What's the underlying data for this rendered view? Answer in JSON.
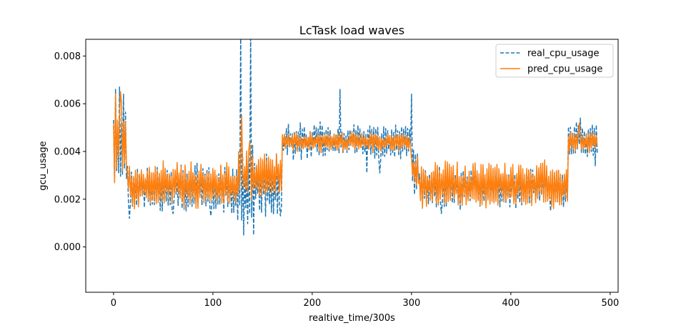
{
  "chart_data": {
    "type": "line",
    "title": "LcTask load waves",
    "xlabel": "realtive_time/300s",
    "ylabel": "gcu_usage",
    "xlim": [
      -28,
      508
    ],
    "ylim": [
      -0.0019,
      0.0087
    ],
    "xticks": [
      0,
      100,
      200,
      300,
      400,
      500
    ],
    "xtick_labels": [
      "0",
      "100",
      "200",
      "300",
      "400",
      "500"
    ],
    "yticks": [
      0.0,
      0.002,
      0.004,
      0.006,
      0.008
    ],
    "ytick_labels": [
      "0.000",
      "0.002",
      "0.004",
      "0.006",
      "0.008"
    ],
    "grid": false,
    "legend_position": "top-right",
    "n_points": 488,
    "series": [
      {
        "name": "real_cpu_usage",
        "color": "#1f77b4",
        "style": "dashed",
        "segments": [
          {
            "x": [
              0,
              14
            ],
            "center": 0.0042,
            "amp": 0.0016,
            "spikes": [
              [
                2,
                0.0066
              ],
              [
                6,
                0.0067
              ],
              [
                10,
                0.0064
              ]
            ]
          },
          {
            "x": [
              14,
              125
            ],
            "center": 0.00245,
            "amp": 0.0009,
            "spikes": [
              [
                16,
                0.0012
              ],
              [
                60,
                0.0014
              ],
              [
                98,
                0.0013
              ]
            ]
          },
          {
            "x": [
              125,
              170
            ],
            "center": 0.0026,
            "amp": 0.0014,
            "spikes": [
              [
                128,
                0.0092
              ],
              [
                131,
                0.0005
              ],
              [
                134,
                0.003
              ],
              [
                138,
                0.0092
              ],
              [
                141,
                0.0005
              ],
              [
                168,
                0.0013
              ]
            ]
          },
          {
            "x": [
              170,
              300
            ],
            "center": 0.0044,
            "amp": 0.0007,
            "spikes": [
              [
                228,
                0.0066
              ],
              [
                255,
                0.0031
              ],
              [
                268,
                0.0031
              ],
              [
                300,
                0.0064
              ]
            ]
          },
          {
            "x": [
              300,
              308
            ],
            "center": 0.0033,
            "amp": 0.0009,
            "spikes": [
              [
                303,
                0.0022
              ]
            ]
          },
          {
            "x": [
              308,
              458
            ],
            "center": 0.0025,
            "amp": 0.0008,
            "spikes": [
              [
                330,
                0.0014
              ],
              [
                440,
                0.0015
              ]
            ]
          },
          {
            "x": [
              458,
              488
            ],
            "center": 0.0045,
            "amp": 0.0007,
            "spikes": [
              [
                470,
                0.0054
              ],
              [
                485,
                0.0034
              ]
            ]
          }
        ]
      },
      {
        "name": "pred_cpu_usage",
        "color": "#ff7f0e",
        "style": "solid",
        "segments": [
          {
            "x": [
              0,
              14
            ],
            "center": 0.0044,
            "amp": 0.0017,
            "spikes": [
              [
                2,
                0.0064
              ],
              [
                7,
                0.0065
              ]
            ]
          },
          {
            "x": [
              14,
              125
            ],
            "center": 0.0026,
            "amp": 0.0009,
            "spikes": []
          },
          {
            "x": [
              125,
              170
            ],
            "center": 0.003,
            "amp": 0.001,
            "spikes": [
              [
                129,
                0.0055
              ],
              [
                137,
                0.0044
              ]
            ]
          },
          {
            "x": [
              170,
              300
            ],
            "center": 0.0044,
            "amp": 0.0004,
            "spikes": []
          },
          {
            "x": [
              300,
              308
            ],
            "center": 0.0032,
            "amp": 0.0007,
            "spikes": []
          },
          {
            "x": [
              308,
              458
            ],
            "center": 0.0026,
            "amp": 0.0009,
            "spikes": []
          },
          {
            "x": [
              458,
              488
            ],
            "center": 0.0044,
            "amp": 0.0004,
            "spikes": [
              [
                469,
                0.0052
              ]
            ]
          }
        ]
      }
    ]
  }
}
